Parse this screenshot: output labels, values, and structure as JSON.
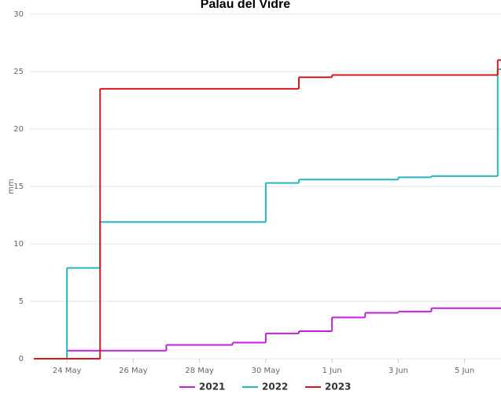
{
  "chart_data": {
    "type": "step",
    "title": "Palau del Vidre",
    "ylabel": "mm",
    "xlim": [
      0,
      14.1
    ],
    "ylim": [
      0,
      30
    ],
    "xticks": [
      {
        "value": 1,
        "label": "24 May"
      },
      {
        "value": 3,
        "label": "26 May"
      },
      {
        "value": 5,
        "label": "28 May"
      },
      {
        "value": 7,
        "label": "30 May"
      },
      {
        "value": 9,
        "label": "1 Jun"
      },
      {
        "value": 11,
        "label": "3 Jun"
      },
      {
        "value": 13,
        "label": "5 Jun"
      }
    ],
    "yticks": [
      0,
      5,
      10,
      15,
      20,
      25,
      30
    ],
    "grid": true,
    "series": [
      {
        "name": "2021",
        "color": "#c21fdc",
        "x": [
          1,
          4,
          6,
          7,
          8,
          9,
          10,
          11,
          12
        ],
        "values": [
          0.7,
          1.2,
          1.4,
          2.2,
          2.4,
          3.6,
          4.0,
          4.1,
          4.4
        ]
      },
      {
        "name": "2022",
        "color": "#22b8bd",
        "x": [
          0,
          1,
          2,
          7,
          8,
          11,
          12,
          14
        ],
        "values": [
          0,
          7.9,
          11.9,
          15.3,
          15.6,
          15.8,
          15.9,
          25.2
        ]
      },
      {
        "name": "2023",
        "color": "#d9161c",
        "x": [
          0,
          2,
          8,
          9,
          14
        ],
        "values": [
          0,
          23.5,
          24.5,
          24.7,
          26.0
        ]
      }
    ]
  }
}
